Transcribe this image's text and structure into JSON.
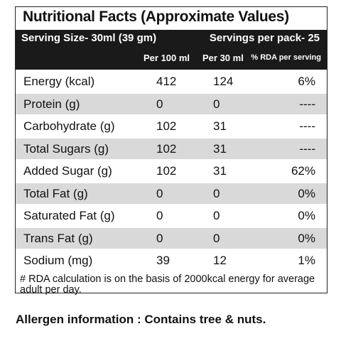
{
  "title": "Nutritional Facts (Approximate Values)",
  "serving": {
    "size": "Serving Size-  30ml (39 gm)",
    "per_pack": "Servings per pack- 25"
  },
  "columns": [
    "Per 100 ml",
    "Per 30 ml",
    "% RDA per serving"
  ],
  "rows": [
    [
      "Energy (kcal)",
      "412",
      "124",
      "6%"
    ],
    [
      "Protein (g)",
      "0",
      "0",
      "----"
    ],
    [
      "Carbohydrate (g)",
      "102",
      "31",
      "----"
    ],
    [
      "Total Sugars (g)",
      "102",
      "31",
      "----"
    ],
    [
      "Added Sugar (g)",
      "102",
      "31",
      "62%"
    ],
    [
      "Total Fat (g)",
      "0",
      "0",
      "0%"
    ],
    [
      "Saturated Fat (g)",
      "0",
      "0",
      "0%"
    ],
    [
      "Trans Fat (g)",
      "0",
      "0",
      "0%"
    ],
    [
      "Sodium (mg)",
      "39",
      "12",
      "1%"
    ]
  ],
  "footnote": "# RDA calculation is on the basis of 2000kcal energy for average adult per day.",
  "allergen": "Allergen information : Contains tree & nuts."
}
